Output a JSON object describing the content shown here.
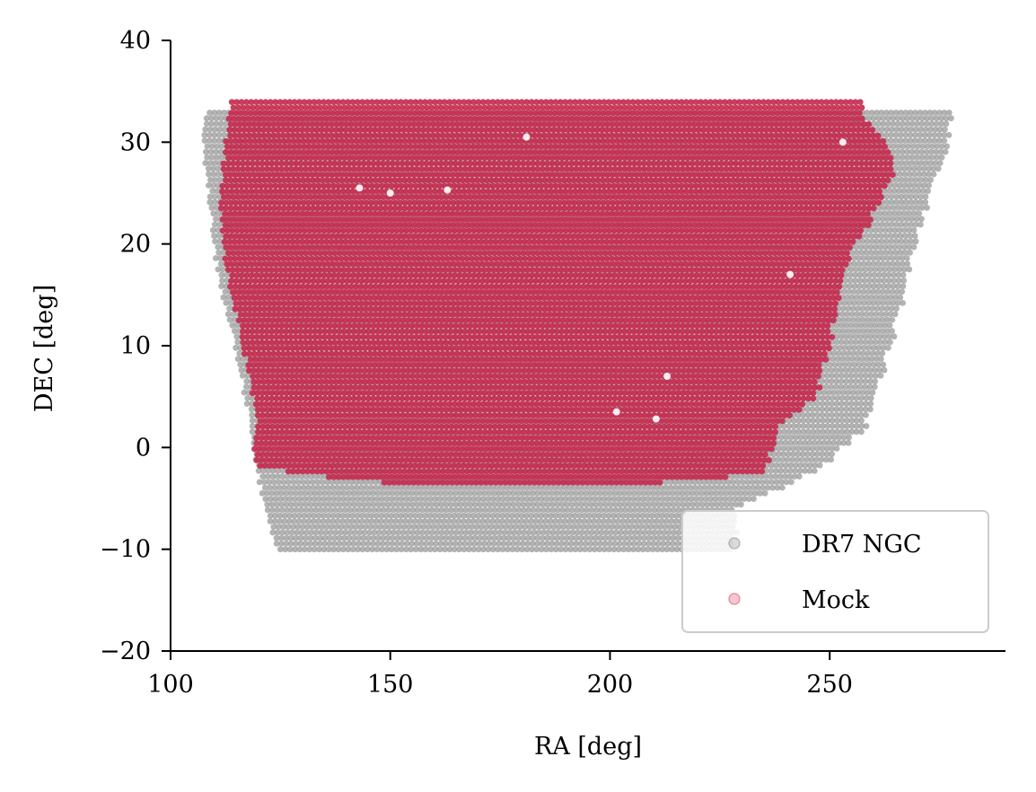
{
  "chart_data": {
    "type": "scatter",
    "title": "",
    "xlabel": "RA [deg]",
    "ylabel": "DEC [deg]",
    "xlim": [
      100,
      290
    ],
    "ylim": [
      -20,
      40
    ],
    "xticks": [
      100,
      150,
      200,
      250
    ],
    "yticks": [
      -20,
      -10,
      0,
      10,
      20,
      30,
      40
    ],
    "xtick_labels": [
      "100",
      "150",
      "200",
      "250"
    ],
    "ytick_labels": [
      "−20",
      "−10",
      "0",
      "10",
      "20",
      "30",
      "40"
    ],
    "grid": false,
    "legend_position": "lower-right",
    "series": [
      {
        "name": "DR7 NGC",
        "color": "#999999",
        "region": {
          "dec_min": -10,
          "dec_max": 33,
          "ra_min_edge": [
            [
              -10,
              125
            ],
            [
              -6,
              122
            ],
            [
              -2,
              120
            ],
            [
              2,
              119
            ],
            [
              6,
              117
            ],
            [
              10,
              115
            ],
            [
              14,
              113
            ],
            [
              18,
              111
            ],
            [
              22,
              110
            ],
            [
              26,
              109
            ],
            [
              30,
              108
            ],
            [
              33,
              109
            ]
          ],
          "ra_max_edge": [
            [
              -10,
              228
            ],
            [
              -6,
              229
            ],
            [
              -2,
              248
            ],
            [
              2,
              258
            ],
            [
              6,
              261
            ],
            [
              10,
              264
            ],
            [
              14,
              266
            ],
            [
              18,
              268
            ],
            [
              22,
              271
            ],
            [
              26,
              274
            ],
            [
              30,
              277
            ],
            [
              33,
              278
            ]
          ]
        }
      },
      {
        "name": "Mock",
        "color": "#c42a4e",
        "region": {
          "dec_min": -4,
          "dec_max": 34,
          "ra_min_edge": [
            [
              -2,
              120
            ],
            [
              0,
              119
            ],
            [
              2,
              120
            ],
            [
              6,
              119
            ],
            [
              10,
              117
            ],
            [
              14,
              115
            ],
            [
              18,
              113
            ],
            [
              22,
              112
            ],
            [
              26,
              112
            ],
            [
              30,
              113
            ],
            [
              33,
              114
            ]
          ],
          "ra_max_edge": [
            [
              -2,
              235
            ],
            [
              0,
              237
            ],
            [
              2,
              238
            ],
            [
              5,
              247
            ],
            [
              8,
              249
            ],
            [
              12,
              251
            ],
            [
              16,
              253
            ],
            [
              20,
              256
            ],
            [
              24,
              261
            ],
            [
              27,
              265
            ],
            [
              30,
              263
            ],
            [
              33,
              257
            ]
          ],
          "dec_floor_edge": [
            [
              120,
              -2
            ],
            [
              140,
              -3.2
            ],
            [
              160,
              -3.8
            ],
            [
              180,
              -4
            ],
            [
              200,
              -3.8
            ],
            [
              220,
              -3.2
            ],
            [
              235,
              -2.5
            ]
          ]
        }
      }
    ]
  }
}
